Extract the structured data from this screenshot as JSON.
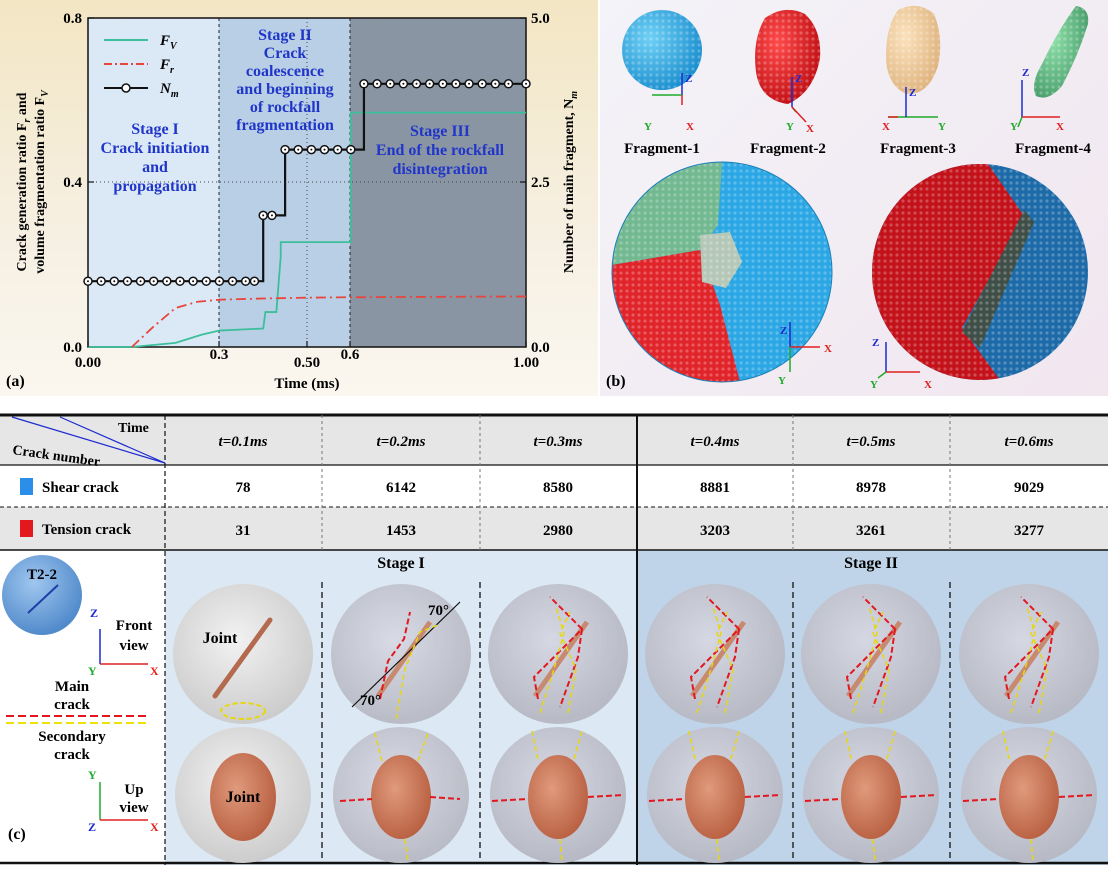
{
  "panel_a": {
    "tag": "(a)",
    "xlabel": "Time (ms)",
    "ylabel_left_line1": "Crack generation ratio F",
    "ylabel_left_line1_sub": "r",
    "ylabel_left_line1_end": " and",
    "ylabel_left_line2": "volume fragmentation ratio F",
    "ylabel_left_line2_sub": "V",
    "ylabel_right": "Number of main fragment, N",
    "ylabel_right_sub": "m",
    "x_ticks": [
      "0.00",
      "0.3",
      "0.50",
      "0.6",
      "1.00"
    ],
    "y_left_ticks": [
      "0.0",
      "0.4",
      "0.8"
    ],
    "y_right_ticks": [
      "0.0",
      "2.5",
      "5.0"
    ],
    "legend": [
      {
        "label": "F",
        "sub": "V",
        "color": "#3cbf9a",
        "style": "solid"
      },
      {
        "label": "F",
        "sub": "r",
        "color": "#e8453c",
        "style": "dashdot"
      },
      {
        "label": "N",
        "sub": "m",
        "color": "#111111",
        "style": "circle"
      }
    ],
    "stage1": [
      "Stage I",
      "Crack initiation",
      "and",
      "propagation"
    ],
    "stage2": [
      "Stage II",
      "Crack",
      "coalescence",
      "and beginning",
      "of rockfall",
      "fragmentation"
    ],
    "stage3": [
      "Stage III",
      "End of the rockfall",
      "disintegration"
    ]
  },
  "chart_data": {
    "type": "line",
    "xlim": [
      0,
      1
    ],
    "ylim_left": [
      0,
      0.8
    ],
    "ylim_right": [
      0,
      5
    ],
    "series": [
      {
        "name": "F_V",
        "axis": "left",
        "color": "#3cbf9a",
        "x": [
          0.0,
          0.1,
          0.2,
          0.26,
          0.3,
          0.4,
          0.405,
          0.43,
          0.44,
          0.44,
          0.6,
          0.6,
          1.0
        ],
        "y": [
          0.0,
          0.0,
          0.01,
          0.03,
          0.04,
          0.045,
          0.085,
          0.085,
          0.22,
          0.255,
          0.255,
          0.57,
          0.57
        ]
      },
      {
        "name": "F_r",
        "axis": "left",
        "color": "#e8453c",
        "x": [
          0.1,
          0.15,
          0.2,
          0.25,
          0.3,
          0.4,
          0.5,
          0.6,
          0.8,
          1.0
        ],
        "y": [
          0.0,
          0.05,
          0.095,
          0.11,
          0.115,
          0.118,
          0.12,
          0.121,
          0.122,
          0.123
        ],
        "style": "dashdot"
      },
      {
        "name": "N_m",
        "axis": "right",
        "color": "#111111",
        "x": [
          0.0,
          0.03,
          0.06,
          0.09,
          0.12,
          0.15,
          0.18,
          0.21,
          0.24,
          0.27,
          0.3,
          0.33,
          0.36,
          0.38,
          0.4,
          0.42,
          0.45,
          0.48,
          0.51,
          0.54,
          0.57,
          0.6,
          0.63,
          0.66,
          0.69,
          0.72,
          0.75,
          0.78,
          0.81,
          0.84,
          0.87,
          0.9,
          0.93,
          0.96,
          1.0
        ],
        "y": [
          1,
          1,
          1,
          1,
          1,
          1,
          1,
          1,
          1,
          1,
          1,
          1,
          1,
          1,
          2,
          2,
          3,
          3,
          3,
          3,
          3,
          3,
          4,
          4,
          4,
          4,
          4,
          4,
          4,
          4,
          4,
          4,
          4,
          4,
          4
        ],
        "style": "circle"
      }
    ]
  },
  "panel_b": {
    "tag": "(b)",
    "fragments": [
      {
        "label": "Fragment-1",
        "color": "#27a7df"
      },
      {
        "label": "Fragment-2",
        "color": "#e3181e"
      },
      {
        "label": "Fragment-3",
        "color": "#f0c894"
      },
      {
        "label": "Fragment-4",
        "color": "#6cbf8d"
      }
    ]
  },
  "panel_c": {
    "tag": "(c)",
    "header_time": "Time",
    "header_crack": "Crack number",
    "times": [
      "t=0.1ms",
      "t=0.2ms",
      "t=0.3ms",
      "t=0.4ms",
      "t=0.5ms",
      "t=0.6ms"
    ],
    "rows": [
      {
        "label": "Shear crack",
        "color": "#2b8ee8",
        "values": [
          "78",
          "6142",
          "8580",
          "8881",
          "8978",
          "9029"
        ]
      },
      {
        "label": "Tension crack",
        "color": "#e3181e",
        "values": [
          "31",
          "1453",
          "2980",
          "3203",
          "3261",
          "3277"
        ]
      }
    ],
    "stage1": "Stage I",
    "stage2": "Stage II",
    "specimen": "T2-2",
    "front_view": [
      "Front",
      "view"
    ],
    "up_view": [
      "Up",
      "view"
    ],
    "main_crack": [
      "Main",
      "crack"
    ],
    "secondary_crack": [
      "Secondary",
      "crack"
    ],
    "joint": "Joint",
    "angle": "70°"
  }
}
